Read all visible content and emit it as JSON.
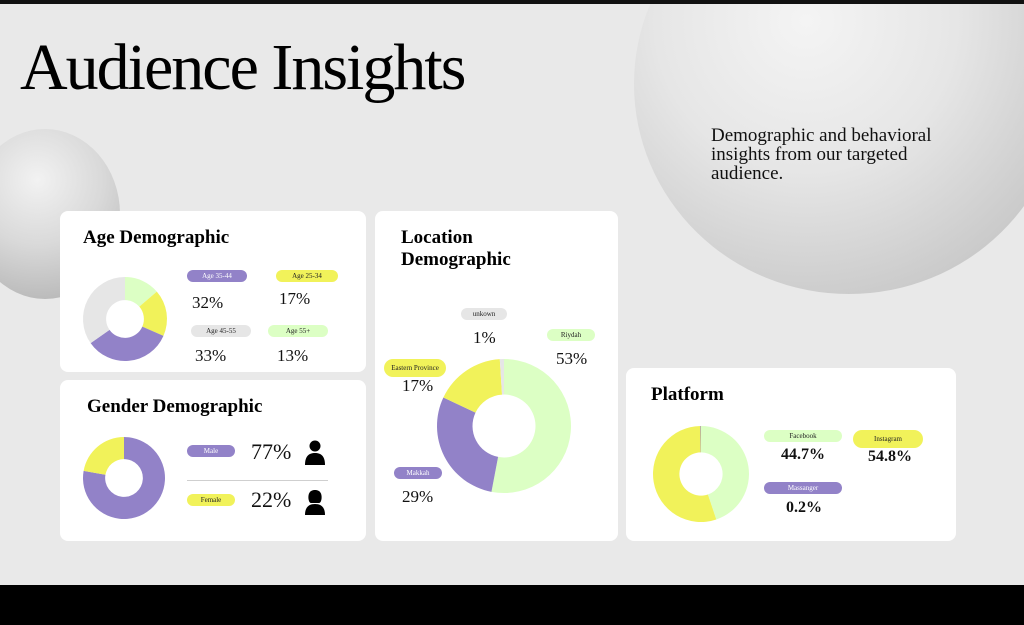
{
  "header": {
    "title": "Audience Insights",
    "subtitle": "Demographic and behavioral insights from our targeted audience."
  },
  "colors": {
    "purple": "#9282c8",
    "yellow": "#f1f25a",
    "green": "#dcffc4",
    "grey": "#e6e6e6"
  },
  "chart_data": [
    {
      "type": "pie",
      "title": "Age Demographic",
      "slices": [
        {
          "label": "Age 35-44",
          "value": 32,
          "display": "32%",
          "color": "#9282c8"
        },
        {
          "label": "Age 25-34",
          "value": 17,
          "display": "17%",
          "color": "#f1f25a"
        },
        {
          "label": "Age 45-55",
          "value": 33,
          "display": "33%",
          "color": "#e6e6e6"
        },
        {
          "label": "Age 55+",
          "value": 13,
          "display": "13%",
          "color": "#dcffc4"
        }
      ]
    },
    {
      "type": "pie",
      "title": "Gender Demographic",
      "slices": [
        {
          "label": "Male",
          "value": 77,
          "display": "77%",
          "color": "#9282c8",
          "icon": "male-person-icon"
        },
        {
          "label": "Female",
          "value": 22,
          "display": "22%",
          "color": "#f1f25a",
          "icon": "female-person-icon"
        }
      ]
    },
    {
      "type": "pie",
      "title": "Location Demographic",
      "slices": [
        {
          "label": "Riydah",
          "value": 53,
          "display": "53%",
          "color": "#dcffc4"
        },
        {
          "label": "Makkah",
          "value": 29,
          "display": "29%",
          "color": "#9282c8"
        },
        {
          "label": "Eastern Province",
          "value": 17,
          "display": "17%",
          "color": "#f1f25a"
        },
        {
          "label": "unkown",
          "value": 1,
          "display": "1%",
          "color": "#e6e6e6"
        }
      ]
    },
    {
      "type": "pie",
      "title": "Platform",
      "slices": [
        {
          "label": "Facebook",
          "value": 44.7,
          "display": "44.7%",
          "color": "#dcffc4"
        },
        {
          "label": "Instagram",
          "value": 54.8,
          "display": "54.8%",
          "color": "#f1f25a"
        },
        {
          "label": "Massanger",
          "value": 0.2,
          "display": "0.2%",
          "color": "#9282c8"
        }
      ]
    }
  ]
}
